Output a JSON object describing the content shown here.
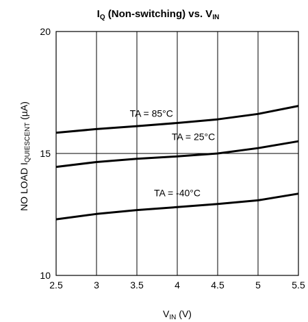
{
  "chart_data": {
    "type": "line",
    "title": {
      "main": "I",
      "main_sub": "Q",
      "rest": " (Non-switching) vs. V",
      "rest_sub": "IN"
    },
    "xlabel": {
      "main": "V",
      "sub": "IN",
      "rest": " (V)"
    },
    "ylabel": {
      "main": "NO LOAD I",
      "sub": "QUIESCENT",
      "rest": " (µA)"
    },
    "xlim": [
      2.5,
      5.5
    ],
    "ylim": [
      10,
      20
    ],
    "x_ticks": [
      "2.5",
      "3",
      "3.5",
      "4",
      "4.5",
      "5",
      "5.5"
    ],
    "y_ticks": [
      "10",
      "15",
      "20"
    ],
    "y_reference_line": 15,
    "grid": "vertical",
    "series": [
      {
        "name": "TA = 85°C",
        "x": [
          2.5,
          3.0,
          3.5,
          4.0,
          4.5,
          5.0,
          5.5
        ],
        "y": [
          15.85,
          16.0,
          16.12,
          16.25,
          16.4,
          16.62,
          16.95
        ]
      },
      {
        "name": "TA = 25°C",
        "x": [
          2.5,
          3.0,
          3.5,
          4.0,
          4.5,
          5.0,
          5.5
        ],
        "y": [
          14.45,
          14.65,
          14.78,
          14.88,
          15.0,
          15.22,
          15.5
        ]
      },
      {
        "name": "TA = -40°C",
        "x": [
          2.5,
          3.0,
          3.5,
          4.0,
          4.5,
          5.0,
          5.5
        ],
        "y": [
          12.3,
          12.52,
          12.68,
          12.8,
          12.93,
          13.08,
          13.35
        ]
      }
    ],
    "annotations": [
      {
        "text": "TA = 85°C",
        "x": 3.68,
        "y": 16.5
      },
      {
        "text": "TA = 25°C",
        "x": 4.2,
        "y": 15.55
      },
      {
        "text": "TA = -40°C",
        "x": 4.0,
        "y": 13.25
      }
    ],
    "line_color": "#000000"
  }
}
